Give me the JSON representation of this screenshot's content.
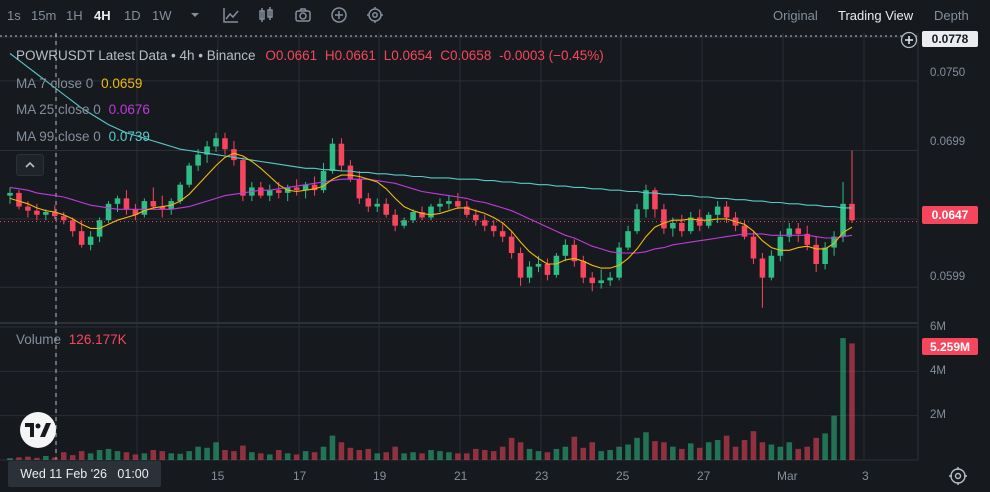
{
  "toolbar": {
    "timeframes": [
      "1s",
      "15m",
      "1H",
      "4H",
      "1D",
      "1W"
    ],
    "active_timeframe": "4H",
    "views": [
      "Original",
      "Trading View",
      "Depth"
    ],
    "active_view": "Trading View",
    "icons": [
      "chevron-down-icon",
      "line-chart-icon",
      "candle-chart-icon",
      "camera-icon",
      "add-indicator-icon",
      "settings-gear-icon"
    ]
  },
  "legend": {
    "title": "POWRUSDT Latest Data • 4h • Binance",
    "open": "O0.0661",
    "high": "H0.0661",
    "low": "L0.0654",
    "close": "C0.0658",
    "change": "-0.0003 (−0.45%)",
    "ma7_label": "MA 7 close 0",
    "ma7_value": "0.0659",
    "ma25_label": "MA 25 close 0",
    "ma25_value": "0.0676",
    "ma99_label": "MA 99 close 0",
    "ma99_value": "0.0739",
    "volume_label": "Volume",
    "volume_value": "126.177K"
  },
  "price_axis": {
    "labels": [
      "0.0750",
      "0.0699",
      "0.0599"
    ],
    "top_price": "0.0778",
    "current_price": "0.0647"
  },
  "volume_axis": {
    "labels": [
      "6M",
      "4M",
      "2M"
    ],
    "current_volume": "5.259M"
  },
  "time_axis": {
    "labels": [
      "15",
      "17",
      "19",
      "21",
      "23",
      "25",
      "27",
      "Mar",
      "3"
    ],
    "crosshair_date": "Wed 11 Feb '26   01:00"
  },
  "colors": {
    "background": "#161a1e",
    "up": "#2ebd85",
    "down": "#f6465d",
    "ma7": "#f0b90b",
    "ma25": "#c03adb",
    "ma99": "#58c9c9",
    "grid": "#2b2f36"
  },
  "chart_data": {
    "type": "candlestick",
    "symbol": "POWRUSDT",
    "interval": "4h",
    "exchange": "Binance",
    "ylim": [
      0.0575,
      0.0785
    ],
    "ohlc": [
      [
        0.0666,
        0.0672,
        0.066,
        0.0668
      ],
      [
        0.0668,
        0.067,
        0.0656,
        0.0658
      ],
      [
        0.0658,
        0.0662,
        0.065,
        0.0655
      ],
      [
        0.0655,
        0.066,
        0.0648,
        0.0652
      ],
      [
        0.0652,
        0.0656,
        0.0648,
        0.0654
      ],
      [
        0.0654,
        0.0659,
        0.0649,
        0.0651
      ],
      [
        0.0651,
        0.0654,
        0.0645,
        0.0648
      ],
      [
        0.0648,
        0.065,
        0.0636,
        0.064
      ],
      [
        0.064,
        0.0648,
        0.0628,
        0.063
      ],
      [
        0.063,
        0.064,
        0.0626,
        0.0636
      ],
      [
        0.0636,
        0.065,
        0.0632,
        0.0648
      ],
      [
        0.0648,
        0.0662,
        0.0646,
        0.066
      ],
      [
        0.066,
        0.0666,
        0.0654,
        0.0664
      ],
      [
        0.0664,
        0.067,
        0.0652,
        0.0656
      ],
      [
        0.0656,
        0.066,
        0.0648,
        0.0652
      ],
      [
        0.0652,
        0.0664,
        0.065,
        0.0662
      ],
      [
        0.0662,
        0.0672,
        0.0656,
        0.0658
      ],
      [
        0.0658,
        0.0666,
        0.065,
        0.0656
      ],
      [
        0.0656,
        0.0664,
        0.0652,
        0.0662
      ],
      [
        0.0662,
        0.0676,
        0.066,
        0.0674
      ],
      [
        0.0674,
        0.069,
        0.0672,
        0.0688
      ],
      [
        0.0688,
        0.07,
        0.0684,
        0.0696
      ],
      [
        0.0696,
        0.0706,
        0.069,
        0.0702
      ],
      [
        0.0702,
        0.0712,
        0.0698,
        0.0708
      ],
      [
        0.0708,
        0.0712,
        0.0696,
        0.07
      ],
      [
        0.07,
        0.0706,
        0.0688,
        0.0692
      ],
      [
        0.0692,
        0.0694,
        0.0662,
        0.0666
      ],
      [
        0.0666,
        0.0676,
        0.0662,
        0.0672
      ],
      [
        0.0672,
        0.0676,
        0.0664,
        0.0666
      ],
      [
        0.0666,
        0.0674,
        0.0662,
        0.067
      ],
      [
        0.067,
        0.0676,
        0.0664,
        0.0668
      ],
      [
        0.0668,
        0.0674,
        0.0662,
        0.0672
      ],
      [
        0.0672,
        0.0678,
        0.0666,
        0.067
      ],
      [
        0.067,
        0.0676,
        0.0664,
        0.0674
      ],
      [
        0.0674,
        0.068,
        0.0666,
        0.067
      ],
      [
        0.067,
        0.069,
        0.0668,
        0.0684
      ],
      [
        0.0684,
        0.0708,
        0.0682,
        0.0704
      ],
      [
        0.0704,
        0.0708,
        0.0684,
        0.0688
      ],
      [
        0.0688,
        0.0692,
        0.0676,
        0.0678
      ],
      [
        0.0678,
        0.0684,
        0.066,
        0.0664
      ],
      [
        0.0664,
        0.0668,
        0.0654,
        0.0658
      ],
      [
        0.0658,
        0.0664,
        0.0654,
        0.066
      ],
      [
        0.066,
        0.0664,
        0.065,
        0.0652
      ],
      [
        0.0652,
        0.0656,
        0.064,
        0.0644
      ],
      [
        0.0644,
        0.065,
        0.0642,
        0.0648
      ],
      [
        0.0648,
        0.0656,
        0.0646,
        0.0654
      ],
      [
        0.0654,
        0.0658,
        0.0648,
        0.065
      ],
      [
        0.065,
        0.066,
        0.0648,
        0.0658
      ],
      [
        0.0658,
        0.0664,
        0.0654,
        0.066
      ],
      [
        0.066,
        0.0666,
        0.0656,
        0.0662
      ],
      [
        0.0662,
        0.0668,
        0.0656,
        0.0658
      ],
      [
        0.0658,
        0.0662,
        0.065,
        0.0652
      ],
      [
        0.0652,
        0.0656,
        0.0644,
        0.0648
      ],
      [
        0.0648,
        0.0652,
        0.064,
        0.0644
      ],
      [
        0.0644,
        0.0648,
        0.0636,
        0.064
      ],
      [
        0.064,
        0.0646,
        0.0632,
        0.0636
      ],
      [
        0.0636,
        0.064,
        0.062,
        0.0624
      ],
      [
        0.0624,
        0.0628,
        0.06,
        0.0606
      ],
      [
        0.0606,
        0.0618,
        0.0602,
        0.0614
      ],
      [
        0.0614,
        0.0622,
        0.061,
        0.0616
      ],
      [
        0.0616,
        0.062,
        0.0604,
        0.0608
      ],
      [
        0.0608,
        0.0624,
        0.0606,
        0.0622
      ],
      [
        0.0622,
        0.0634,
        0.0618,
        0.063
      ],
      [
        0.063,
        0.0634,
        0.0614,
        0.0618
      ],
      [
        0.0618,
        0.0622,
        0.0602,
        0.0606
      ],
      [
        0.0606,
        0.061,
        0.0596,
        0.0602
      ],
      [
        0.0602,
        0.0612,
        0.0598,
        0.0604
      ],
      [
        0.0604,
        0.061,
        0.06,
        0.0606
      ],
      [
        0.0606,
        0.0632,
        0.0604,
        0.0628
      ],
      [
        0.0628,
        0.0644,
        0.0626,
        0.064
      ],
      [
        0.064,
        0.066,
        0.0638,
        0.0656
      ],
      [
        0.0656,
        0.0674,
        0.065,
        0.067
      ],
      [
        0.067,
        0.0672,
        0.065,
        0.0656
      ],
      [
        0.0656,
        0.066,
        0.0638,
        0.0642
      ],
      [
        0.0642,
        0.065,
        0.0636,
        0.0646
      ],
      [
        0.0646,
        0.0652,
        0.0636,
        0.064
      ],
      [
        0.064,
        0.0654,
        0.0638,
        0.065
      ],
      [
        0.065,
        0.0656,
        0.064,
        0.0644
      ],
      [
        0.0644,
        0.0654,
        0.0642,
        0.0652
      ],
      [
        0.0652,
        0.0662,
        0.0646,
        0.0658
      ],
      [
        0.0658,
        0.0662,
        0.0646,
        0.065
      ],
      [
        0.065,
        0.0654,
        0.064,
        0.0644
      ],
      [
        0.0644,
        0.0648,
        0.0634,
        0.0636
      ],
      [
        0.0636,
        0.064,
        0.0616,
        0.062
      ],
      [
        0.062,
        0.0624,
        0.0584,
        0.0606
      ],
      [
        0.0606,
        0.0626,
        0.0604,
        0.0622
      ],
      [
        0.0622,
        0.064,
        0.0618,
        0.0636
      ],
      [
        0.0636,
        0.0646,
        0.0632,
        0.0642
      ],
      [
        0.0642,
        0.0646,
        0.0632,
        0.0638
      ],
      [
        0.0638,
        0.0644,
        0.0626,
        0.063
      ],
      [
        0.063,
        0.0636,
        0.061,
        0.0616
      ],
      [
        0.0616,
        0.0632,
        0.0612,
        0.0628
      ],
      [
        0.0628,
        0.064,
        0.0622,
        0.0636
      ],
      [
        0.0636,
        0.0676,
        0.0632,
        0.066
      ],
      [
        0.066,
        0.0699,
        0.0646,
        0.0648
      ]
    ],
    "ma7": {
      "start": 0,
      "points": [
        0.0664,
        0.0662,
        0.066,
        0.0657,
        0.0655,
        0.0654,
        0.0652,
        0.0649,
        0.0645,
        0.0642,
        0.0642,
        0.0645,
        0.0648,
        0.065,
        0.0652,
        0.0655,
        0.0657,
        0.0658,
        0.0659,
        0.0662,
        0.0667,
        0.0674,
        0.0681,
        0.0688,
        0.0694,
        0.0697,
        0.0695,
        0.0691,
        0.0686,
        0.068,
        0.0674,
        0.067,
        0.0669,
        0.067,
        0.0671,
        0.0673,
        0.0678,
        0.0681,
        0.0681,
        0.068,
        0.0678,
        0.0676,
        0.0671,
        0.0664,
        0.0658,
        0.0655,
        0.0653,
        0.0652,
        0.0653,
        0.0655,
        0.0657,
        0.0657,
        0.0655,
        0.0653,
        0.065,
        0.0646,
        0.064,
        0.0632,
        0.0625,
        0.062,
        0.0616,
        0.0616,
        0.0619,
        0.062,
        0.0618,
        0.0615,
        0.0613,
        0.0613,
        0.0615,
        0.062,
        0.0627,
        0.0636,
        0.0643,
        0.0646,
        0.0648,
        0.0648,
        0.0649,
        0.0648,
        0.0648,
        0.0649,
        0.0649,
        0.0647,
        0.0645,
        0.064,
        0.0633,
        0.0628,
        0.0626,
        0.0626,
        0.0628,
        0.0629,
        0.0627,
        0.0627,
        0.0631,
        0.0639,
        0.0643
      ]
    },
    "ma25": {
      "start": 0,
      "points": [
        0.0672,
        0.0671,
        0.067,
        0.0668,
        0.0667,
        0.0666,
        0.0665,
        0.0663,
        0.0661,
        0.0659,
        0.0658,
        0.0657,
        0.0656,
        0.0656,
        0.0656,
        0.0656,
        0.0656,
        0.0656,
        0.0656,
        0.0657,
        0.0658,
        0.066,
        0.0662,
        0.0664,
        0.0666,
        0.0667,
        0.0668,
        0.0669,
        0.067,
        0.067,
        0.0671,
        0.0672,
        0.0673,
        0.0674,
        0.0675,
        0.0676,
        0.0677,
        0.0678,
        0.0678,
        0.0678,
        0.0678,
        0.0677,
        0.0676,
        0.0675,
        0.0673,
        0.0671,
        0.0669,
        0.0668,
        0.0667,
        0.0666,
        0.0665,
        0.0664,
        0.0662,
        0.0661,
        0.0659,
        0.0657,
        0.0655,
        0.0652,
        0.0649,
        0.0646,
        0.0643,
        0.064,
        0.0637,
        0.0635,
        0.0632,
        0.0629,
        0.0627,
        0.0625,
        0.0624,
        0.0624,
        0.0624,
        0.0625,
        0.0627,
        0.0628,
        0.063,
        0.0631,
        0.0632,
        0.0633,
        0.0634,
        0.0635,
        0.0636,
        0.0637,
        0.0638,
        0.0638,
        0.0638,
        0.0637,
        0.0637,
        0.0637,
        0.0637,
        0.0637,
        0.0636,
        0.0635,
        0.0635,
        0.0636,
        0.0637
      ]
    },
    "ma99": {
      "start": 0,
      "points": [
        0.077,
        0.0765,
        0.076,
        0.0755,
        0.075,
        0.0745,
        0.074,
        0.0735,
        0.073,
        0.0726,
        0.0722,
        0.0718,
        0.0715,
        0.0712,
        0.071,
        0.0708,
        0.0706,
        0.0704,
        0.0702,
        0.07,
        0.0699,
        0.0698,
        0.0697,
        0.0696,
        0.0695,
        0.0694,
        0.0693,
        0.0692,
        0.0691,
        0.069,
        0.0689,
        0.0688,
        0.0687,
        0.0686,
        0.0686,
        0.0685,
        0.0685,
        0.0684,
        0.0684,
        0.0683,
        0.0683,
        0.0682,
        0.0682,
        0.0681,
        0.0681,
        0.068,
        0.068,
        0.0679,
        0.0679,
        0.0679,
        0.0678,
        0.0678,
        0.0678,
        0.0677,
        0.0677,
        0.0676,
        0.0676,
        0.0675,
        0.0675,
        0.0674,
        0.0674,
        0.0673,
        0.0673,
        0.0672,
        0.0672,
        0.0671,
        0.0671,
        0.067,
        0.067,
        0.0669,
        0.0669,
        0.0668,
        0.0668,
        0.0667,
        0.0667,
        0.0666,
        0.0666,
        0.0665,
        0.0665,
        0.0664,
        0.0664,
        0.0663,
        0.0663,
        0.0662,
        0.0662,
        0.0661,
        0.0661,
        0.066,
        0.066,
        0.0659,
        0.0659,
        0.0658,
        0.0658,
        0.0657,
        0.0657
      ]
    },
    "volume_ylim": [
      0,
      6
    ],
    "volume_unit": "M",
    "volume": [
      0.08,
      0.12,
      0.15,
      0.1,
      0.18,
      0.12,
      0.35,
      0.22,
      0.4,
      0.3,
      0.45,
      0.5,
      0.4,
      0.35,
      0.25,
      0.3,
      0.45,
      0.4,
      0.3,
      0.28,
      0.4,
      0.6,
      0.55,
      0.8,
      0.45,
      0.4,
      0.65,
      0.35,
      0.3,
      0.25,
      0.45,
      0.3,
      0.25,
      0.4,
      0.35,
      0.6,
      1.1,
      0.8,
      0.55,
      0.45,
      0.5,
      0.3,
      0.35,
      0.6,
      0.3,
      0.35,
      0.3,
      0.45,
      0.4,
      0.35,
      0.3,
      0.3,
      0.5,
      0.45,
      0.4,
      0.6,
      1.0,
      0.8,
      0.5,
      0.4,
      0.35,
      0.5,
      0.6,
      1.05,
      0.55,
      0.8,
      0.4,
      0.45,
      0.6,
      0.7,
      1.0,
      1.25,
      0.85,
      0.8,
      0.6,
      0.5,
      0.75,
      0.55,
      0.8,
      0.9,
      1.1,
      0.6,
      0.9,
      1.3,
      0.8,
      0.7,
      0.6,
      0.8,
      0.5,
      0.6,
      1.0,
      1.2,
      2.0,
      5.5,
      5.259
    ]
  }
}
